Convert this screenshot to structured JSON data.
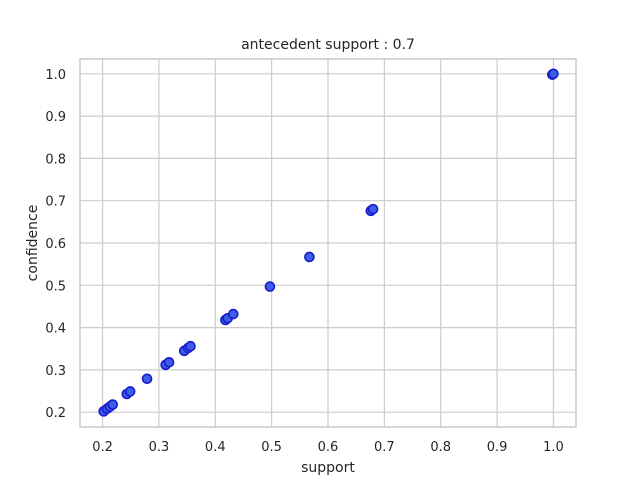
{
  "chart_data": {
    "type": "scatter",
    "title": "antecedent support : 0.7",
    "xlabel": "support",
    "ylabel": "confidence",
    "xlim": [
      0.16,
      1.04
    ],
    "ylim": [
      0.165,
      1.035
    ],
    "xticks": [
      "0.2",
      "0.3",
      "0.4",
      "0.5",
      "0.6",
      "0.7",
      "0.8",
      "0.9",
      "1.0"
    ],
    "yticks": [
      "0.2",
      "0.3",
      "0.4",
      "0.5",
      "0.6",
      "0.7",
      "0.8",
      "0.9",
      "1.0"
    ],
    "grid": true,
    "marker_color": "#3b5ee8",
    "marker_edge_color": "#1a1acc",
    "series": [
      {
        "x": [
          0.202,
          0.208,
          0.213,
          0.218,
          0.243,
          0.249,
          0.279,
          0.312,
          0.318,
          0.345,
          0.352,
          0.356,
          0.418,
          0.422,
          0.432,
          0.497,
          0.567,
          0.676,
          0.68,
          0.998,
          1.0
        ],
        "y": [
          0.202,
          0.208,
          0.213,
          0.218,
          0.243,
          0.249,
          0.279,
          0.312,
          0.318,
          0.345,
          0.352,
          0.356,
          0.418,
          0.422,
          0.432,
          0.497,
          0.567,
          0.676,
          0.68,
          0.998,
          1.0
        ]
      }
    ]
  }
}
